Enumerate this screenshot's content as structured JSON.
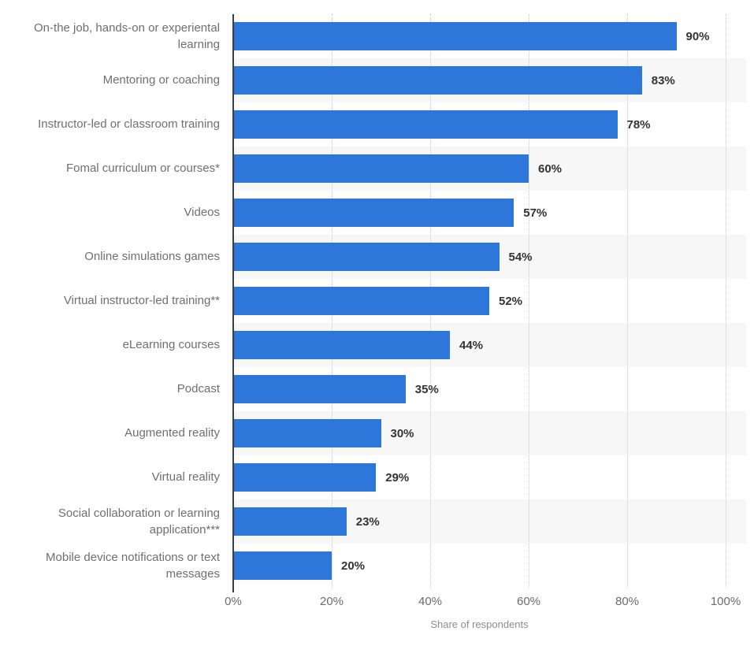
{
  "chart_data": {
    "type": "bar",
    "orientation": "horizontal",
    "categories": [
      "On-the job, hands-on or experiental learning",
      "Mentoring or coaching",
      "Instructor-led or classroom training",
      "Fomal curriculum or courses*",
      "Videos",
      "Online simulations games",
      "Virtual instructor-led training**",
      "eLearning courses",
      "Podcast",
      "Augmented reality",
      "Virtual reality",
      "Social collaboration or learning application***",
      "Mobile device notifications or text messages"
    ],
    "values": [
      90,
      83,
      78,
      60,
      57,
      54,
      52,
      44,
      35,
      30,
      29,
      23,
      20
    ],
    "value_labels": [
      "90%",
      "83%",
      "78%",
      "60%",
      "57%",
      "54%",
      "52%",
      "44%",
      "35%",
      "30%",
      "29%",
      "23%",
      "20%"
    ],
    "title": "",
    "xlabel": "Share of respondents",
    "ylabel": "",
    "xlim": [
      0,
      100
    ],
    "x_ticks": [
      "0%",
      "20%",
      "40%",
      "60%",
      "80%",
      "100%"
    ],
    "x_tick_values": [
      0,
      20,
      40,
      60,
      80,
      100
    ],
    "grid": "vertical-dotted",
    "legend": null,
    "colors": {
      "bar": "#2c77d9",
      "row_stripe": "#f7f7f7",
      "axis_line": "#3d3d3d",
      "gridline": "#c9c9c9",
      "category_text": "#6f6f6f",
      "value_text": "#333333",
      "tick_text": "#6b6b6b",
      "axis_title_text": "#8d8d8d"
    }
  }
}
